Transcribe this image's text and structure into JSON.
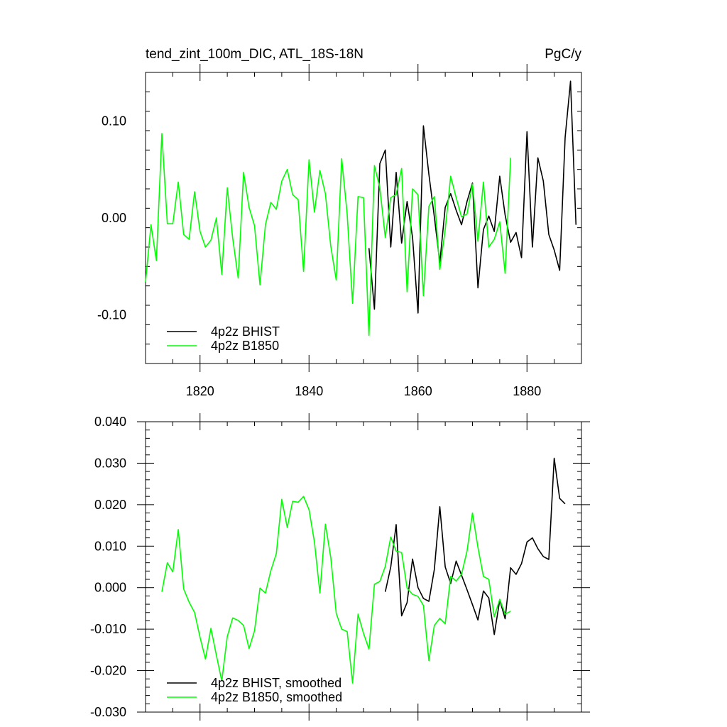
{
  "page": {
    "title_left": "tend_zint_100m_DIC, ATL_18S-18N",
    "title_right": "PgC/y"
  },
  "chart_data": [
    {
      "type": "line",
      "title": "tend_zint_100m_DIC, ATL_18S-18N",
      "units": "PgC/y",
      "xlim": [
        1810,
        1890
      ],
      "ylim": [
        -0.15,
        0.15
      ],
      "xticks": [
        1820,
        1840,
        1860,
        1880
      ],
      "xtick_labels": [
        "1820",
        "1840",
        "1860",
        "1880"
      ],
      "yticks": [
        -0.1,
        0.0,
        0.1
      ],
      "ytick_labels": [
        "-0.10",
        "0.00",
        "0.10"
      ],
      "legend_position": "bottom-left",
      "colors": {
        "bhist": "#000000",
        "b1850": "#00ff00"
      },
      "series": [
        {
          "name": "4p2z BHIST",
          "color": "#000000",
          "x": [
            1851,
            1852,
            1853,
            1854,
            1855,
            1856,
            1857,
            1858,
            1859,
            1860,
            1861,
            1862,
            1863,
            1864,
            1865,
            1866,
            1867,
            1868,
            1869,
            1870,
            1871,
            1872,
            1873,
            1874,
            1875,
            1876,
            1877,
            1878,
            1879,
            1880,
            1881,
            1882,
            1883,
            1884,
            1885,
            1886,
            1887,
            1888,
            1889
          ],
          "values": [
            -0.031,
            -0.094,
            0.056,
            0.07,
            -0.03,
            0.047,
            -0.026,
            0.017,
            -0.02,
            -0.098,
            0.095,
            0.045,
            0.001,
            -0.046,
            0.011,
            0.025,
            0.008,
            -0.007,
            0.017,
            0.036,
            -0.072,
            -0.012,
            0.002,
            -0.014,
            0.043,
            0.003,
            -0.025,
            -0.015,
            -0.041,
            0.089,
            -0.03,
            0.062,
            0.038,
            -0.017,
            -0.033,
            -0.054,
            0.083,
            0.141,
            -0.007
          ]
        },
        {
          "name": "4p2z B1850",
          "color": "#00ff00",
          "x": [
            1810,
            1811,
            1812,
            1813,
            1814,
            1815,
            1816,
            1817,
            1818,
            1819,
            1820,
            1821,
            1822,
            1823,
            1824,
            1825,
            1826,
            1827,
            1828,
            1829,
            1830,
            1831,
            1832,
            1833,
            1834,
            1835,
            1836,
            1837,
            1838,
            1839,
            1840,
            1841,
            1842,
            1843,
            1844,
            1845,
            1846,
            1847,
            1848,
            1849,
            1850,
            1851,
            1852,
            1853,
            1854,
            1855,
            1856,
            1857,
            1858,
            1859,
            1860,
            1861,
            1862,
            1863,
            1864,
            1865,
            1866,
            1867,
            1868,
            1869,
            1870,
            1871,
            1872,
            1873,
            1874,
            1875,
            1876,
            1877
          ],
          "values": [
            -0.066,
            -0.007,
            -0.044,
            0.087,
            -0.006,
            -0.006,
            0.037,
            -0.017,
            -0.022,
            0.027,
            -0.014,
            -0.03,
            -0.023,
            0.0,
            -0.058,
            0.031,
            -0.021,
            -0.062,
            0.047,
            0.011,
            -0.008,
            -0.069,
            -0.007,
            0.016,
            0.009,
            0.038,
            0.05,
            0.024,
            0.019,
            -0.055,
            0.06,
            0.006,
            0.049,
            0.025,
            -0.029,
            -0.064,
            0.061,
            0.004,
            -0.088,
            0.022,
            0.021,
            -0.121,
            0.054,
            0.031,
            -0.02,
            0.021,
            0.024,
            0.051,
            -0.076,
            0.03,
            0.024,
            -0.08,
            0.012,
            0.022,
            -0.053,
            -0.012,
            0.043,
            0.021,
            0.001,
            0.004,
            0.035,
            -0.024,
            0.037,
            -0.03,
            -0.022,
            -0.004,
            -0.057,
            0.062
          ]
        }
      ]
    },
    {
      "type": "line",
      "xlim": [
        1810,
        1890
      ],
      "ylim": [
        -0.03,
        0.04
      ],
      "yticks": [
        -0.03,
        -0.02,
        -0.01,
        0.0,
        0.01,
        0.02,
        0.03,
        0.04
      ],
      "ytick_labels": [
        "-0.030",
        "-0.020",
        "-0.010",
        "0.000",
        "0.010",
        "0.020",
        "0.030",
        "0.040"
      ],
      "legend_position": "bottom-left",
      "series": [
        {
          "name": "4p2z BHIST, smoothed",
          "color": "#000000",
          "x": [
            1854,
            1855,
            1856,
            1857,
            1858,
            1859,
            1860,
            1861,
            1862,
            1863,
            1864,
            1865,
            1866,
            1867,
            1868,
            1869,
            1870,
            1871,
            1872,
            1873,
            1874,
            1875,
            1876,
            1877,
            1878,
            1879,
            1880,
            1881,
            1882,
            1883,
            1884,
            1885,
            1886,
            1887
          ],
          "values": [
            -0.001,
            0.005,
            0.0152,
            -0.0068,
            -0.0036,
            0.0069,
            0.0,
            -0.0026,
            -0.0033,
            0.0044,
            0.0195,
            0.005,
            0.001,
            0.0064,
            0.003,
            -0.0005,
            -0.0041,
            -0.0078,
            -0.0008,
            -0.0025,
            -0.0113,
            -0.003,
            -0.0075,
            0.0048,
            0.0032,
            0.0058,
            0.011,
            0.012,
            0.0094,
            0.0075,
            0.0068,
            0.0312,
            0.0215,
            0.0202
          ]
        },
        {
          "name": "4p2z B1850, smoothed",
          "color": "#00ff00",
          "x": [
            1813,
            1814,
            1815,
            1816,
            1817,
            1818,
            1819,
            1820,
            1821,
            1822,
            1823,
            1824,
            1825,
            1826,
            1827,
            1828,
            1829,
            1830,
            1831,
            1832,
            1833,
            1834,
            1835,
            1836,
            1837,
            1838,
            1839,
            1840,
            1841,
            1842,
            1843,
            1844,
            1845,
            1846,
            1847,
            1848,
            1849,
            1850,
            1851,
            1852,
            1853,
            1854,
            1855,
            1856,
            1857,
            1858,
            1859,
            1860,
            1861,
            1862,
            1863,
            1864,
            1865,
            1866,
            1867,
            1868,
            1869,
            1870,
            1871,
            1872,
            1873,
            1874,
            1875,
            1876,
            1877
          ],
          "values": [
            -0.001,
            0.006,
            0.0038,
            0.014,
            -0.0003,
            -0.0035,
            -0.006,
            -0.012,
            -0.0172,
            -0.0098,
            -0.0163,
            -0.0225,
            -0.0118,
            -0.0073,
            -0.0079,
            -0.0091,
            -0.0147,
            -0.0104,
            -0.0001,
            -0.0013,
            0.0041,
            0.0082,
            0.0213,
            0.0145,
            0.0208,
            0.0206,
            0.022,
            0.0188,
            0.011,
            -0.0013,
            0.0153,
            0.0073,
            -0.0062,
            -0.01,
            -0.0106,
            -0.023,
            -0.0064,
            -0.011,
            -0.0148,
            0.0008,
            0.0015,
            0.0051,
            0.0122,
            0.0088,
            0.0085,
            -0.0001,
            -0.0016,
            -0.0021,
            -0.0043,
            -0.0176,
            -0.0091,
            -0.0074,
            -0.0087,
            0.0027,
            0.0016,
            0.0032,
            0.0088,
            0.018,
            0.0097,
            0.0027,
            0.002,
            -0.007,
            -0.0028,
            -0.0064,
            -0.0057
          ]
        }
      ]
    }
  ]
}
